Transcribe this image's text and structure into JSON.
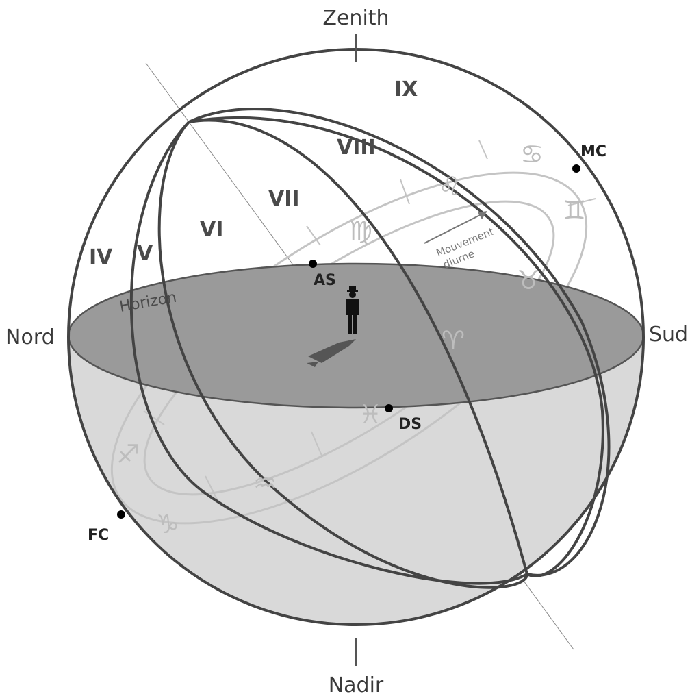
{
  "labels": {
    "zenith": "Zenith",
    "nadir": "Nadir",
    "north": "Nord",
    "south": "Sud",
    "horizon": "Horizon",
    "motion_line1": "Mouvement",
    "motion_line2": "diurne"
  },
  "houses": [
    "IV",
    "V",
    "VI",
    "VII",
    "VIII",
    "IX"
  ],
  "angles": {
    "ascendant": "AS",
    "descendant": "DS",
    "midheaven": "MC",
    "imum_coeli": "FC"
  },
  "zodiac_signs": [
    "♋",
    "♌",
    "♍",
    "♊",
    "♉",
    "♈",
    "♓",
    "♒",
    "♑",
    "♐"
  ],
  "colors": {
    "sphere_line": "#444444",
    "horizon_fill": "#9a9a9a",
    "lower_fill": "#d9d9d9",
    "zodiac_band": "#c4c4c4",
    "points": "#000000"
  }
}
